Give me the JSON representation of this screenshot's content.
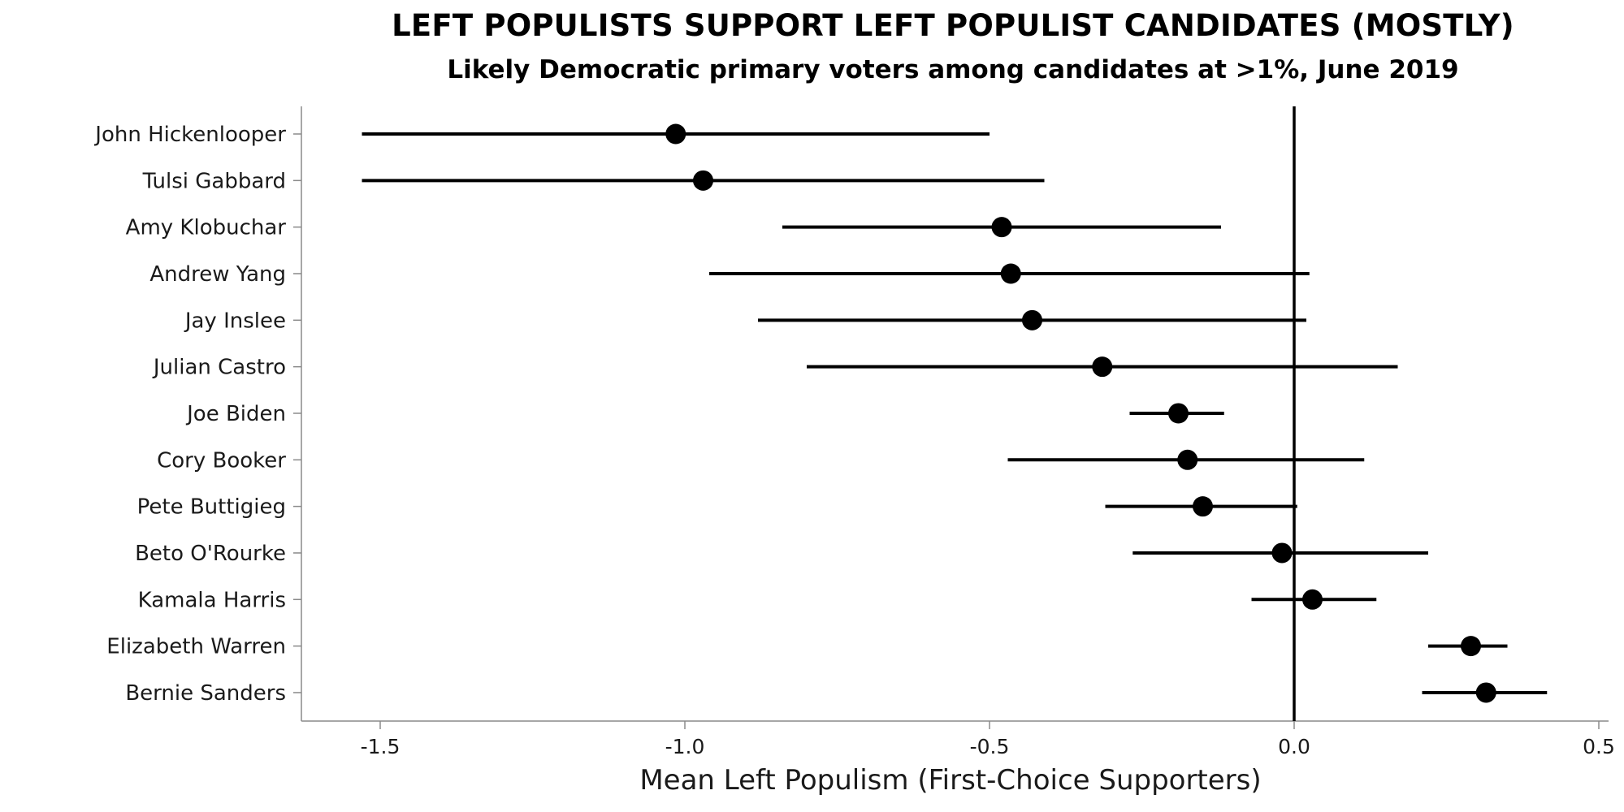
{
  "title": "LEFT POPULISTS SUPPORT LEFT POPULIST CANDIDATES (MOSTLY)",
  "subtitle": "Likely Democratic primary voters among candidates at >1%, June 2019",
  "chart_data": {
    "type": "scatter",
    "subtype": "dot-and-whisker",
    "title": "LEFT POPULISTS SUPPORT LEFT POPULIST CANDIDATES (MOSTLY)",
    "subtitle": "Likely Democratic primary voters among candidates at >1%, June 2019",
    "xlabel": "Mean Left Populism (First-Choice Supporters)",
    "ylabel": "",
    "xlim": [
      -1.64,
      0.52
    ],
    "xticks": [
      -1.5,
      -1.0,
      -0.5,
      0.0,
      0.5
    ],
    "xtick_labels": [
      "-1.5",
      "-1.0",
      "-0.5",
      "0.0",
      "0.5"
    ],
    "reference_line": {
      "x": 0.0,
      "orientation": "vertical"
    },
    "grid": false,
    "legend": null,
    "categories": [
      "John Hickenlooper",
      "Tulsi Gabbard",
      "Amy Klobuchar",
      "Andrew Yang",
      "Jay Inslee",
      "Julian Castro",
      "Joe Biden",
      "Cory Booker",
      "Pete Buttigieg",
      "Beto O'Rourke",
      "Kamala Harris",
      "Elizabeth Warren",
      "Bernie Sanders"
    ],
    "series": [
      {
        "name": "mean",
        "values": [
          -1.015,
          -0.97,
          -0.48,
          -0.465,
          -0.43,
          -0.315,
          -0.19,
          -0.175,
          -0.15,
          -0.02,
          0.03,
          0.29,
          0.315
        ]
      },
      {
        "name": "ci_low",
        "values": [
          -1.53,
          -1.53,
          -0.84,
          -0.96,
          -0.88,
          -0.8,
          -0.27,
          -0.47,
          -0.31,
          -0.265,
          -0.07,
          0.22,
          0.21
        ]
      },
      {
        "name": "ci_high",
        "values": [
          -0.5,
          -0.41,
          -0.12,
          0.025,
          0.02,
          0.17,
          -0.115,
          0.115,
          0.005,
          0.22,
          0.135,
          0.35,
          0.415
        ]
      }
    ]
  }
}
